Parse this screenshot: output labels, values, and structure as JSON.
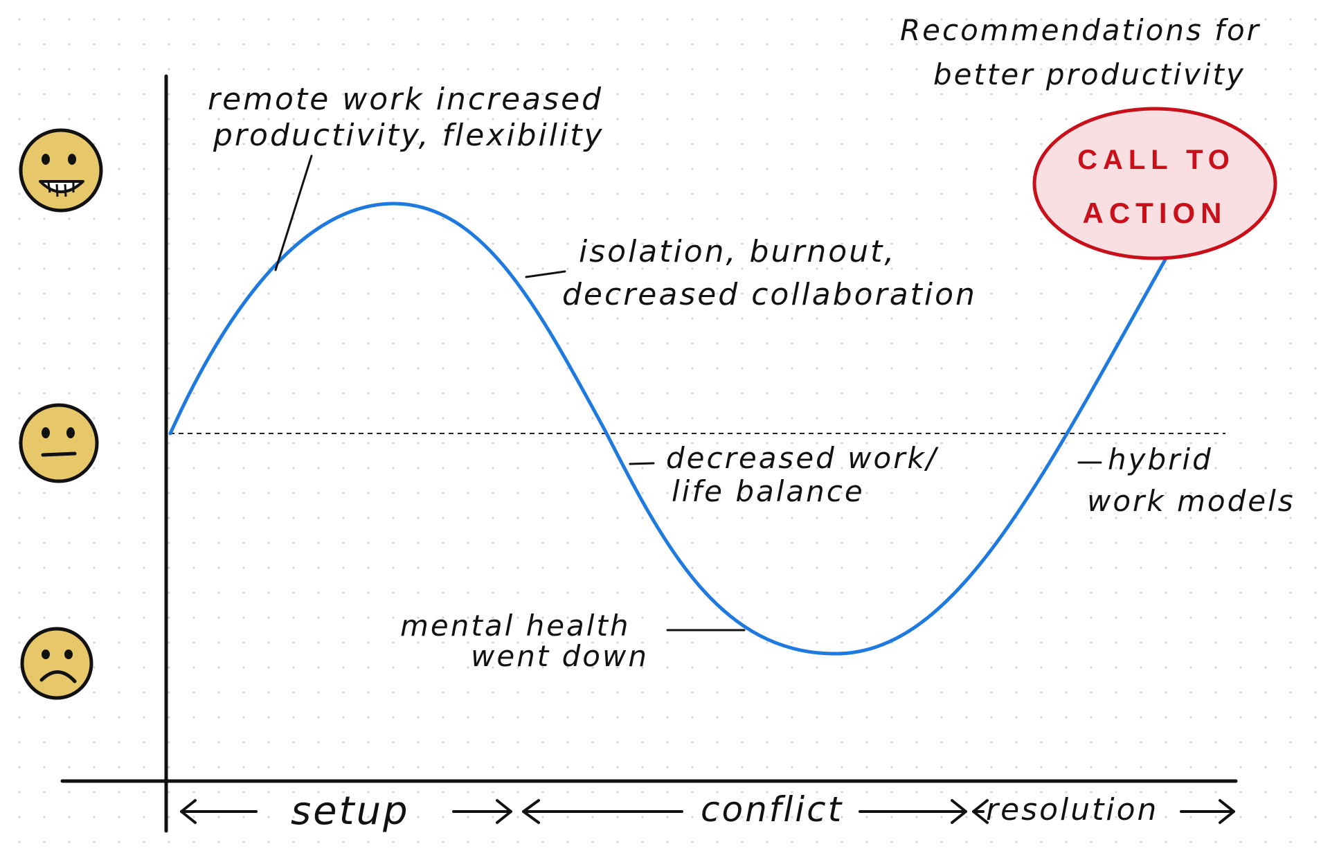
{
  "colors": {
    "curve": "#1f7ae0",
    "ink": "#111111",
    "cta_fill": "#fadfe2",
    "cta_stroke": "#c8101a",
    "face_fill": "#e6c86a"
  },
  "title": {
    "line1": "Recommendations for",
    "line2": "better productivity"
  },
  "call_to_action": {
    "line1": "CALL TO",
    "line2": "ACTION"
  },
  "annotations": {
    "remote_work": {
      "line1": "remote work increased",
      "line2": "productivity, flexibility"
    },
    "isolation": {
      "line1": "isolation, burnout,",
      "line2": "decreased collaboration"
    },
    "work_life": {
      "line1": "decreased work/",
      "line2": "life balance"
    },
    "mental_health": {
      "line1": "mental health",
      "line2": "went down"
    },
    "hybrid": {
      "line1": "hybrid",
      "line2": "work models"
    }
  },
  "phases": {
    "setup": "setup",
    "conflict": "conflict",
    "resolution": "resolution"
  },
  "faces": {
    "top": "happy-face-icon",
    "middle": "neutral-face-icon",
    "bottom": "sad-face-icon"
  }
}
